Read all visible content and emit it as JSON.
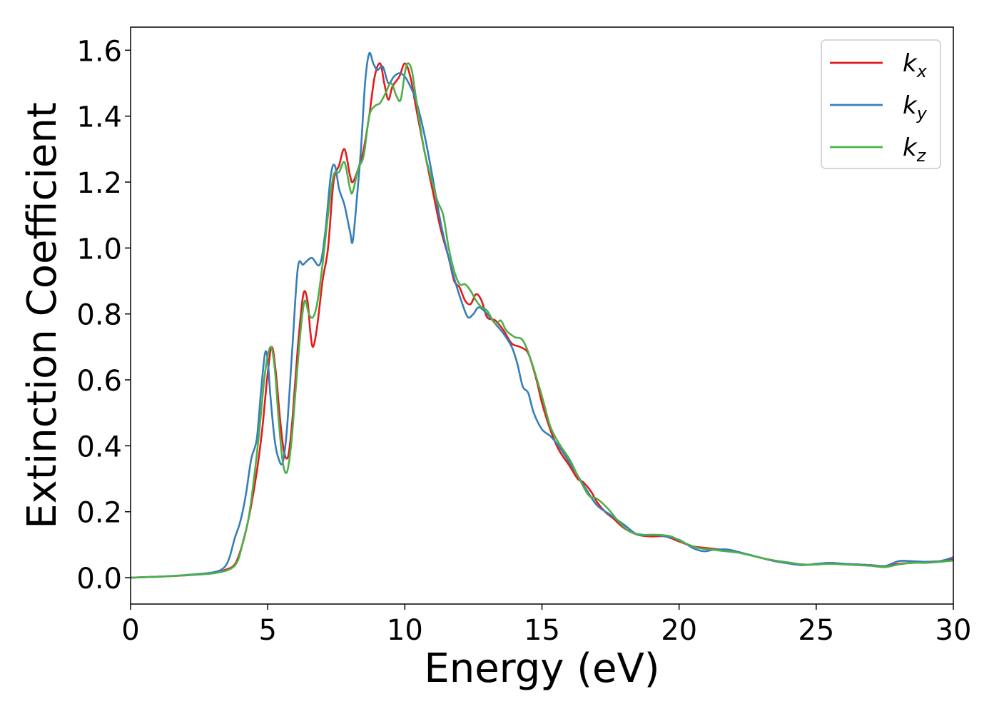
{
  "chart_data": {
    "type": "line",
    "xlabel": "Energy (eV)",
    "ylabel": "Extinction Coefficient",
    "xlim": [
      0,
      30
    ],
    "ylim": [
      -0.08,
      1.67
    ],
    "xticks": [
      0,
      5,
      10,
      15,
      20,
      25,
      30
    ],
    "xtick_labels": [
      "0",
      "5",
      "10",
      "15",
      "20",
      "25",
      "30"
    ],
    "yticks": [
      0.0,
      0.2,
      0.4,
      0.6,
      0.8,
      1.0,
      1.2,
      1.4,
      1.6
    ],
    "ytick_labels": [
      "0.0",
      "0.2",
      "0.4",
      "0.6",
      "0.8",
      "1.0",
      "1.2",
      "1.4",
      "1.6"
    ],
    "grid": false,
    "legend_position": "top-right",
    "series": [
      {
        "name": "k",
        "subscript": "x",
        "color": "#e41a1c",
        "points": [
          [
            0,
            0
          ],
          [
            1,
            0.003
          ],
          [
            2,
            0.007
          ],
          [
            3,
            0.014
          ],
          [
            3.5,
            0.025
          ],
          [
            3.8,
            0.04
          ],
          [
            4.0,
            0.08
          ],
          [
            4.2,
            0.14
          ],
          [
            4.4,
            0.22
          ],
          [
            4.6,
            0.32
          ],
          [
            4.8,
            0.45
          ],
          [
            5.0,
            0.62
          ],
          [
            5.15,
            0.7
          ],
          [
            5.3,
            0.62
          ],
          [
            5.45,
            0.48
          ],
          [
            5.6,
            0.38
          ],
          [
            5.75,
            0.37
          ],
          [
            5.9,
            0.48
          ],
          [
            6.1,
            0.7
          ],
          [
            6.3,
            0.86
          ],
          [
            6.45,
            0.84
          ],
          [
            6.55,
            0.75
          ],
          [
            6.65,
            0.7
          ],
          [
            6.8,
            0.76
          ],
          [
            7.0,
            0.9
          ],
          [
            7.2,
            1.0
          ],
          [
            7.4,
            1.2
          ],
          [
            7.6,
            1.25
          ],
          [
            7.8,
            1.3
          ],
          [
            8.0,
            1.22
          ],
          [
            8.1,
            1.2
          ],
          [
            8.3,
            1.24
          ],
          [
            8.5,
            1.3
          ],
          [
            8.7,
            1.4
          ],
          [
            8.9,
            1.52
          ],
          [
            9.1,
            1.56
          ],
          [
            9.25,
            1.5
          ],
          [
            9.4,
            1.45
          ],
          [
            9.55,
            1.49
          ],
          [
            9.8,
            1.52
          ],
          [
            10.0,
            1.56
          ],
          [
            10.2,
            1.52
          ],
          [
            10.4,
            1.43
          ],
          [
            10.7,
            1.3
          ],
          [
            11.0,
            1.18
          ],
          [
            11.3,
            1.06
          ],
          [
            11.6,
            0.97
          ],
          [
            11.8,
            0.9
          ],
          [
            12.0,
            0.88
          ],
          [
            12.2,
            0.84
          ],
          [
            12.4,
            0.83
          ],
          [
            12.6,
            0.86
          ],
          [
            12.8,
            0.84
          ],
          [
            13.0,
            0.79
          ],
          [
            13.3,
            0.78
          ],
          [
            13.6,
            0.75
          ],
          [
            13.9,
            0.71
          ],
          [
            14.2,
            0.7
          ],
          [
            14.5,
            0.68
          ],
          [
            14.8,
            0.6
          ],
          [
            15.0,
            0.53
          ],
          [
            15.3,
            0.45
          ],
          [
            15.6,
            0.39
          ],
          [
            16.0,
            0.34
          ],
          [
            16.3,
            0.3
          ],
          [
            16.5,
            0.29
          ],
          [
            16.8,
            0.26
          ],
          [
            17.0,
            0.23
          ],
          [
            17.3,
            0.2
          ],
          [
            17.6,
            0.18
          ],
          [
            18.0,
            0.15
          ],
          [
            18.5,
            0.13
          ],
          [
            19.0,
            0.125
          ],
          [
            19.5,
            0.125
          ],
          [
            20.0,
            0.11
          ],
          [
            20.5,
            0.095
          ],
          [
            21.0,
            0.09
          ],
          [
            21.5,
            0.085
          ],
          [
            22.0,
            0.08
          ],
          [
            22.5,
            0.07
          ],
          [
            23.0,
            0.06
          ],
          [
            23.5,
            0.05
          ],
          [
            24.0,
            0.045
          ],
          [
            24.5,
            0.04
          ],
          [
            25.0,
            0.04
          ],
          [
            25.5,
            0.045
          ],
          [
            26.0,
            0.042
          ],
          [
            26.5,
            0.04
          ],
          [
            27.0,
            0.038
          ],
          [
            27.5,
            0.035
          ],
          [
            28.0,
            0.042
          ],
          [
            28.5,
            0.045
          ],
          [
            29.0,
            0.048
          ],
          [
            29.5,
            0.05
          ],
          [
            30.0,
            0.055
          ]
        ]
      },
      {
        "name": "k",
        "subscript": "y",
        "color": "#377eb8",
        "points": [
          [
            0,
            0
          ],
          [
            1,
            0.003
          ],
          [
            2,
            0.008
          ],
          [
            3,
            0.016
          ],
          [
            3.4,
            0.03
          ],
          [
            3.6,
            0.06
          ],
          [
            3.8,
            0.12
          ],
          [
            4.0,
            0.17
          ],
          [
            4.2,
            0.25
          ],
          [
            4.4,
            0.36
          ],
          [
            4.6,
            0.42
          ],
          [
            4.75,
            0.56
          ],
          [
            4.9,
            0.68
          ],
          [
            5.0,
            0.66
          ],
          [
            5.1,
            0.55
          ],
          [
            5.25,
            0.42
          ],
          [
            5.4,
            0.36
          ],
          [
            5.55,
            0.35
          ],
          [
            5.7,
            0.45
          ],
          [
            5.9,
            0.7
          ],
          [
            6.1,
            0.94
          ],
          [
            6.3,
            0.95
          ],
          [
            6.6,
            0.97
          ],
          [
            6.9,
            0.95
          ],
          [
            7.1,
            1.05
          ],
          [
            7.3,
            1.22
          ],
          [
            7.45,
            1.25
          ],
          [
            7.6,
            1.18
          ],
          [
            7.8,
            1.13
          ],
          [
            8.0,
            1.05
          ],
          [
            8.1,
            1.02
          ],
          [
            8.25,
            1.15
          ],
          [
            8.4,
            1.3
          ],
          [
            8.55,
            1.5
          ],
          [
            8.7,
            1.59
          ],
          [
            8.85,
            1.56
          ],
          [
            9.0,
            1.54
          ],
          [
            9.2,
            1.55
          ],
          [
            9.4,
            1.5
          ],
          [
            9.6,
            1.52
          ],
          [
            9.8,
            1.53
          ],
          [
            10.0,
            1.52
          ],
          [
            10.2,
            1.49
          ],
          [
            10.4,
            1.45
          ],
          [
            10.7,
            1.35
          ],
          [
            11.0,
            1.22
          ],
          [
            11.3,
            1.08
          ],
          [
            11.6,
            0.97
          ],
          [
            11.9,
            0.88
          ],
          [
            12.1,
            0.83
          ],
          [
            12.3,
            0.79
          ],
          [
            12.5,
            0.8
          ],
          [
            12.7,
            0.82
          ],
          [
            13.0,
            0.8
          ],
          [
            13.3,
            0.77
          ],
          [
            13.6,
            0.74
          ],
          [
            13.9,
            0.7
          ],
          [
            14.1,
            0.65
          ],
          [
            14.3,
            0.58
          ],
          [
            14.5,
            0.56
          ],
          [
            14.7,
            0.5
          ],
          [
            15.0,
            0.45
          ],
          [
            15.3,
            0.43
          ],
          [
            15.6,
            0.4
          ],
          [
            16.0,
            0.35
          ],
          [
            16.3,
            0.31
          ],
          [
            16.6,
            0.27
          ],
          [
            17.0,
            0.22
          ],
          [
            17.5,
            0.19
          ],
          [
            18.0,
            0.16
          ],
          [
            18.5,
            0.13
          ],
          [
            19.0,
            0.13
          ],
          [
            19.5,
            0.125
          ],
          [
            20.0,
            0.115
          ],
          [
            20.5,
            0.09
          ],
          [
            20.9,
            0.08
          ],
          [
            21.3,
            0.085
          ],
          [
            21.8,
            0.085
          ],
          [
            22.3,
            0.075
          ],
          [
            23.0,
            0.06
          ],
          [
            23.5,
            0.05
          ],
          [
            24.0,
            0.043
          ],
          [
            24.5,
            0.038
          ],
          [
            25.0,
            0.042
          ],
          [
            25.5,
            0.045
          ],
          [
            26.0,
            0.042
          ],
          [
            26.5,
            0.04
          ],
          [
            27.0,
            0.038
          ],
          [
            27.5,
            0.035
          ],
          [
            28.0,
            0.05
          ],
          [
            28.5,
            0.05
          ],
          [
            29.0,
            0.048
          ],
          [
            29.5,
            0.05
          ],
          [
            30.0,
            0.062
          ]
        ]
      },
      {
        "name": "k",
        "subscript": "z",
        "color": "#4daf4a",
        "points": [
          [
            0,
            0
          ],
          [
            1,
            0.003
          ],
          [
            2,
            0.007
          ],
          [
            3,
            0.013
          ],
          [
            3.6,
            0.025
          ],
          [
            3.9,
            0.05
          ],
          [
            4.1,
            0.11
          ],
          [
            4.3,
            0.18
          ],
          [
            4.5,
            0.3
          ],
          [
            4.7,
            0.45
          ],
          [
            4.9,
            0.62
          ],
          [
            5.1,
            0.7
          ],
          [
            5.25,
            0.64
          ],
          [
            5.4,
            0.48
          ],
          [
            5.55,
            0.35
          ],
          [
            5.7,
            0.32
          ],
          [
            5.85,
            0.4
          ],
          [
            6.0,
            0.55
          ],
          [
            6.2,
            0.75
          ],
          [
            6.35,
            0.84
          ],
          [
            6.5,
            0.8
          ],
          [
            6.65,
            0.79
          ],
          [
            6.8,
            0.83
          ],
          [
            7.0,
            0.95
          ],
          [
            7.2,
            1.1
          ],
          [
            7.4,
            1.22
          ],
          [
            7.6,
            1.23
          ],
          [
            7.8,
            1.26
          ],
          [
            8.0,
            1.18
          ],
          [
            8.1,
            1.17
          ],
          [
            8.3,
            1.24
          ],
          [
            8.5,
            1.28
          ],
          [
            8.7,
            1.4
          ],
          [
            8.9,
            1.43
          ],
          [
            9.1,
            1.44
          ],
          [
            9.3,
            1.47
          ],
          [
            9.5,
            1.5
          ],
          [
            9.7,
            1.46
          ],
          [
            9.85,
            1.45
          ],
          [
            10.0,
            1.53
          ],
          [
            10.1,
            1.56
          ],
          [
            10.25,
            1.54
          ],
          [
            10.4,
            1.46
          ],
          [
            10.7,
            1.3
          ],
          [
            11.0,
            1.2
          ],
          [
            11.2,
            1.14
          ],
          [
            11.4,
            1.1
          ],
          [
            11.6,
            1.0
          ],
          [
            11.8,
            0.93
          ],
          [
            12.0,
            0.89
          ],
          [
            12.2,
            0.89
          ],
          [
            12.4,
            0.87
          ],
          [
            12.6,
            0.84
          ],
          [
            12.8,
            0.82
          ],
          [
            13.0,
            0.81
          ],
          [
            13.3,
            0.77
          ],
          [
            13.5,
            0.78
          ],
          [
            13.7,
            0.75
          ],
          [
            14.0,
            0.73
          ],
          [
            14.3,
            0.72
          ],
          [
            14.6,
            0.66
          ],
          [
            15.0,
            0.55
          ],
          [
            15.3,
            0.46
          ],
          [
            15.6,
            0.41
          ],
          [
            16.0,
            0.36
          ],
          [
            16.3,
            0.31
          ],
          [
            16.7,
            0.25
          ],
          [
            17.0,
            0.24
          ],
          [
            17.4,
            0.21
          ],
          [
            17.8,
            0.17
          ],
          [
            18.2,
            0.14
          ],
          [
            18.7,
            0.13
          ],
          [
            19.2,
            0.13
          ],
          [
            19.7,
            0.125
          ],
          [
            20.2,
            0.105
          ],
          [
            20.7,
            0.09
          ],
          [
            21.2,
            0.085
          ],
          [
            21.7,
            0.08
          ],
          [
            22.2,
            0.075
          ],
          [
            23.0,
            0.06
          ],
          [
            23.5,
            0.052
          ],
          [
            24.0,
            0.046
          ],
          [
            24.5,
            0.04
          ],
          [
            25.0,
            0.04
          ],
          [
            25.5,
            0.042
          ],
          [
            26.0,
            0.04
          ],
          [
            26.5,
            0.038
          ],
          [
            27.0,
            0.036
          ],
          [
            27.5,
            0.032
          ],
          [
            28.0,
            0.04
          ],
          [
            28.5,
            0.045
          ],
          [
            29.0,
            0.045
          ],
          [
            29.5,
            0.048
          ],
          [
            30.0,
            0.052
          ]
        ]
      }
    ]
  }
}
